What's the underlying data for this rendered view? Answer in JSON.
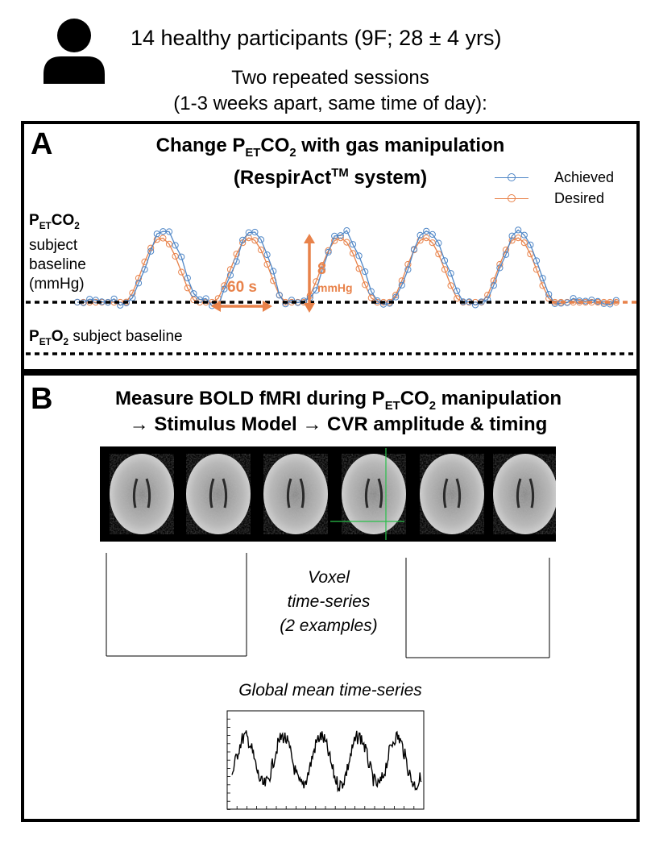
{
  "header": {
    "participants_text": "14 healthy participants (9F; 28 ± 4 yrs)",
    "sessions_line1": "Two repeated sessions",
    "sessions_line2": "(1-3 weeks apart, same time of day):"
  },
  "panel_a": {
    "letter": "A",
    "title_prefix": "Change P",
    "title_sub": "ET",
    "title_mid": "CO",
    "title_sub2": "2",
    "title_suffix": " with gas manipulation",
    "title_line2_prefix": "(RespirAct",
    "title_line2_sup": "TM",
    "title_line2_suffix": " system)",
    "legend": {
      "achieved_label": "Achieved",
      "desired_label": "Desired",
      "achieved_color": "#4f86c6",
      "desired_color": "#e8824a"
    },
    "petco2_label_p": "P",
    "petco2_label_sub": "ET",
    "petco2_label_co": "CO",
    "petco2_label_sub2": "2",
    "petco2_line2": "subject",
    "petco2_line3": "baseline",
    "petco2_line4": "(mmHg)",
    "annotation_60s": "60 s",
    "annotation_8": "8",
    "annotation_mmhg": "mmHg",
    "peto2_label_p": "P",
    "peto2_label_sub": "ET",
    "peto2_label_o": "O",
    "peto2_label_sub2": "2",
    "peto2_suffix": " subject baseline",
    "annotation_color": "#e8824a"
  },
  "panel_b": {
    "letter": "B",
    "title_prefix": "Measure BOLD fMRI during P",
    "title_sub": "ET",
    "title_mid": "CO",
    "title_sub2": "2",
    "title_suffix": " manipulation",
    "title_line2": "→ Stimulus Model → CVR amplitude & timing",
    "voxel_line1": "Voxel",
    "voxel_line2": "time-series",
    "voxel_line3": "(2 examples)",
    "global_label": "Global mean time-series"
  }
}
